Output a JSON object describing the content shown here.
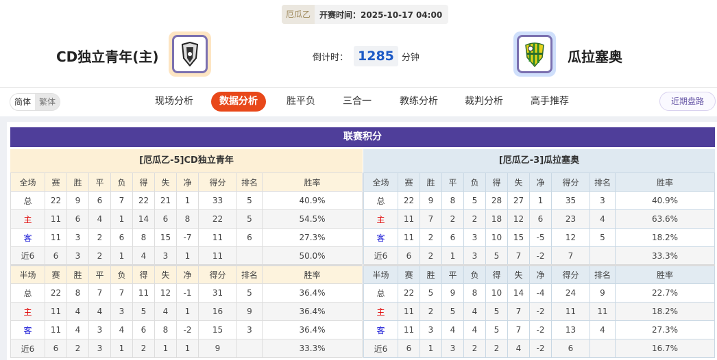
{
  "header": {
    "league": "厄瓜乙",
    "kickoff_label": "开赛时间：",
    "kickoff": "2025-10-17 04:00",
    "home_team": "CD独立青年(主)",
    "away_team": "瓜拉塞奥",
    "countdown_label": "倒计时：",
    "countdown_value": "1285",
    "countdown_unit": "分钟"
  },
  "nav": {
    "lang_simplified": "简体",
    "lang_traditional": "繁体",
    "tabs": [
      "现场分析",
      "数据分析",
      "胜平负",
      "三合一",
      "教练分析",
      "裁判分析",
      "高手推荐"
    ],
    "active_tab": "数据分析",
    "recent": "近期盘路"
  },
  "colors": {
    "accent": "#e8481a",
    "title_bar": "#4f3e9a",
    "home_label": "#e00000",
    "away_label": "#1a1ad6"
  },
  "standings": {
    "title": "联赛积分",
    "full_headers": [
      "全场",
      "赛",
      "胜",
      "平",
      "负",
      "得",
      "失",
      "净",
      "得分",
      "排名",
      "胜率"
    ],
    "half_headers": [
      "半场",
      "赛",
      "胜",
      "平",
      "负",
      "得",
      "失",
      "净",
      "得分",
      "排名",
      "胜率"
    ],
    "home": {
      "title": "[厄瓜乙-5]CD独立青年",
      "full": [
        [
          "总",
          "22",
          "9",
          "6",
          "7",
          "22",
          "21",
          "1",
          "33",
          "5",
          "40.9%"
        ],
        [
          "主",
          "11",
          "6",
          "4",
          "1",
          "14",
          "6",
          "8",
          "22",
          "5",
          "54.5%"
        ],
        [
          "客",
          "11",
          "3",
          "2",
          "6",
          "8",
          "15",
          "-7",
          "11",
          "6",
          "27.3%"
        ],
        [
          "近6",
          "6",
          "3",
          "2",
          "1",
          "4",
          "3",
          "1",
          "11",
          "",
          "50.0%"
        ]
      ],
      "half": [
        [
          "总",
          "22",
          "8",
          "7",
          "7",
          "11",
          "12",
          "-1",
          "31",
          "5",
          "36.4%"
        ],
        [
          "主",
          "11",
          "4",
          "4",
          "3",
          "5",
          "4",
          "1",
          "16",
          "9",
          "36.4%"
        ],
        [
          "客",
          "11",
          "4",
          "3",
          "4",
          "6",
          "8",
          "-2",
          "15",
          "3",
          "36.4%"
        ],
        [
          "近6",
          "6",
          "2",
          "3",
          "1",
          "2",
          "1",
          "1",
          "9",
          "",
          "33.3%"
        ]
      ]
    },
    "away": {
      "title": "[厄瓜乙-3]瓜拉塞奥",
      "full": [
        [
          "总",
          "22",
          "9",
          "8",
          "5",
          "28",
          "27",
          "1",
          "35",
          "3",
          "40.9%"
        ],
        [
          "主",
          "11",
          "7",
          "2",
          "2",
          "18",
          "12",
          "6",
          "23",
          "4",
          "63.6%"
        ],
        [
          "客",
          "11",
          "2",
          "6",
          "3",
          "10",
          "15",
          "-5",
          "12",
          "5",
          "18.2%"
        ],
        [
          "近6",
          "6",
          "2",
          "1",
          "3",
          "5",
          "7",
          "-2",
          "7",
          "",
          "33.3%"
        ]
      ],
      "half": [
        [
          "总",
          "22",
          "5",
          "9",
          "8",
          "10",
          "14",
          "-4",
          "24",
          "9",
          "22.7%"
        ],
        [
          "主",
          "11",
          "2",
          "5",
          "4",
          "5",
          "7",
          "-2",
          "11",
          "11",
          "18.2%"
        ],
        [
          "客",
          "11",
          "3",
          "4",
          "4",
          "5",
          "7",
          "-2",
          "13",
          "4",
          "27.3%"
        ],
        [
          "近6",
          "6",
          "1",
          "3",
          "2",
          "2",
          "4",
          "-2",
          "6",
          "",
          "16.7%"
        ]
      ]
    }
  }
}
